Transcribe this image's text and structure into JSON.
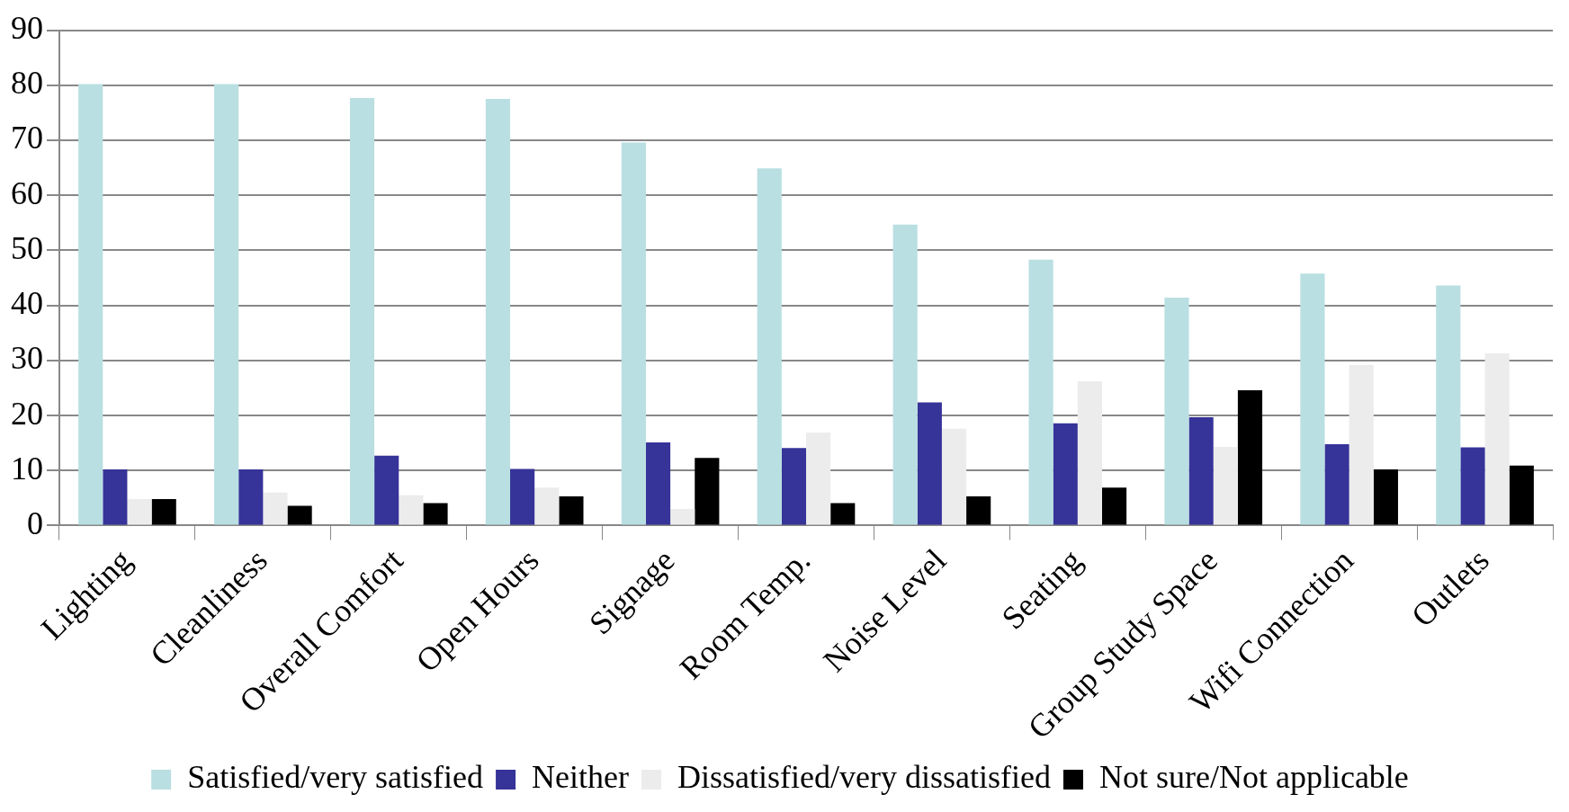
{
  "chart_data": {
    "type": "bar",
    "categories": [
      "Lighting",
      "Cleanliness",
      "Overall Comfort",
      "Open Hours",
      "Signage",
      "Room Temp.",
      "Noise Level",
      "Seating",
      "Group Study Space",
      "Wifi Connection",
      "Outlets"
    ],
    "series": [
      {
        "name": "Satisfied/very satisfied",
        "color": "#b9dfe2",
        "values": [
          80.2,
          80.2,
          77.7,
          77.5,
          69.6,
          64.9,
          54.7,
          48.3,
          41.4,
          45.8,
          43.6
        ]
      },
      {
        "name": "Neither",
        "color": "#363399",
        "values": [
          10.2,
          10.2,
          12.7,
          10.3,
          15.1,
          14.1,
          22.4,
          18.6,
          19.7,
          14.8,
          14.2
        ]
      },
      {
        "name": "Dissatisfied/very dissatisfied",
        "color": "#ececec",
        "values": [
          4.8,
          6,
          5.5,
          6.9,
          3,
          16.9,
          17.6,
          26.2,
          14.3,
          29.2,
          31.3
        ]
      },
      {
        "name": "Not sure/Not applicable",
        "color": "#000000",
        "values": [
          4.8,
          3.6,
          4.1,
          5.3,
          12.3,
          4.1,
          5.3,
          6.9,
          24.6,
          10.2,
          10.9
        ]
      }
    ],
    "ylim": [
      0,
      90
    ],
    "yticks": [
      0,
      10,
      20,
      30,
      40,
      50,
      60,
      70,
      80,
      90
    ],
    "grid": "y",
    "legend": "bottom"
  }
}
